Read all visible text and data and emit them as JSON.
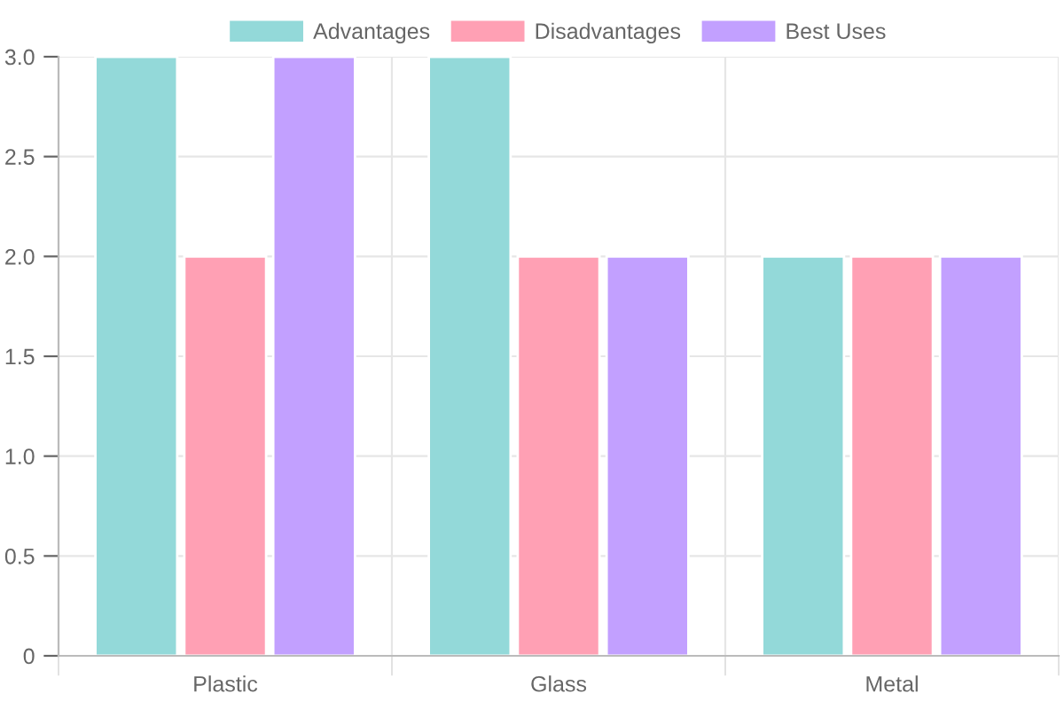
{
  "chart_data": {
    "type": "bar",
    "categories": [
      "Plastic",
      "Glass",
      "Metal"
    ],
    "series": [
      {
        "name": "Advantages",
        "color": "#93d9d9",
        "values": [
          3,
          3,
          2
        ]
      },
      {
        "name": "Disadvantages",
        "color": "#ffa0b4",
        "values": [
          2,
          2,
          2
        ]
      },
      {
        "name": "Best Uses",
        "color": "#c2a0ff",
        "values": [
          3,
          2,
          2
        ]
      }
    ],
    "ylim": [
      0,
      3
    ],
    "yticks": [
      0,
      {
        "value": 0.5,
        "label": "0.5"
      },
      {
        "value": 1,
        "label": "1.0"
      },
      {
        "value": 1.5,
        "label": "1.5"
      },
      {
        "value": 2,
        "label": "2.0"
      },
      {
        "value": 2.5,
        "label": "2.5"
      },
      {
        "value": 3,
        "label": "3.0"
      }
    ],
    "grid": true,
    "legend": "top"
  }
}
